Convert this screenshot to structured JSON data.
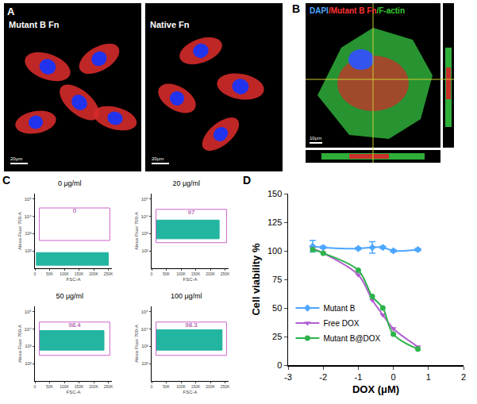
{
  "panels": {
    "A": {
      "letter": "A",
      "images": [
        {
          "label": "Mutant B Fn",
          "scale_bar": "20μm"
        },
        {
          "label": "Native Fn",
          "scale_bar": "20μm"
        }
      ]
    },
    "B": {
      "letter": "B",
      "stain_labels": [
        {
          "text": "DAPI",
          "color": "#4da6ff"
        },
        {
          "text": "/Mutant B Fn",
          "color": "#ff3333"
        },
        {
          "text": "/F-actin",
          "color": "#33cc33"
        }
      ],
      "scale_bar": "10μm"
    },
    "C": {
      "letter": "C"
    },
    "D": {
      "letter": "D"
    }
  },
  "chart_data": [
    {
      "type": "density",
      "title": "0 μg/ml",
      "xlabel": "FSC-A",
      "ylabel": "Alexa Fluor 700-A",
      "xlim": [
        0,
        262000
      ],
      "xticks": [
        0,
        {
          "value": 50000,
          "label": "50K"
        },
        {
          "value": 100000,
          "label": "100K"
        },
        {
          "value": 150000,
          "label": "150K"
        },
        {
          "value": 200000,
          "label": "200K"
        },
        {
          "value": 250000,
          "label": "250K"
        }
      ],
      "ylim": [
        10,
        200000
      ],
      "log": "y",
      "yticks": [
        {
          "value": 100,
          "label": "10²"
        },
        {
          "value": 1000,
          "label": "10³"
        },
        {
          "value": 10000,
          "label": "10⁴"
        },
        {
          "value": 100000,
          "label": "10⁵"
        }
      ],
      "grid": false,
      "color": "#22b5a0",
      "population": {
        "x": [
          5000,
          250000
        ],
        "y": [
          15,
          80
        ]
      },
      "gate": {
        "x": [
          15000,
          255000
        ],
        "y": [
          400,
          30000
        ]
      },
      "gate_percent": 0
    },
    {
      "type": "density",
      "title": "20 μg/ml",
      "xlabel": "FSC-A",
      "ylabel": "Alexa Fluor 700-A",
      "xlim": [
        0,
        262000
      ],
      "xticks": [
        0,
        {
          "value": 50000,
          "label": "50K"
        },
        {
          "value": 100000,
          "label": "100K"
        },
        {
          "value": 150000,
          "label": "150K"
        },
        {
          "value": 200000,
          "label": "200K"
        },
        {
          "value": 250000,
          "label": "250K"
        }
      ],
      "ylim": [
        10,
        200000
      ],
      "log": "y",
      "yticks": [
        {
          "value": 100,
          "label": "10²"
        },
        {
          "value": 1000,
          "label": "10³"
        },
        {
          "value": 10000,
          "label": "10⁴"
        },
        {
          "value": 100000,
          "label": "10⁵"
        }
      ],
      "grid": false,
      "color": "#22b5a0",
      "population": {
        "x": [
          15000,
          230000
        ],
        "y": [
          500,
          6000
        ]
      },
      "gate": {
        "x": [
          15000,
          255000
        ],
        "y": [
          300,
          25000
        ]
      },
      "gate_percent": 97
    },
    {
      "type": "density",
      "title": "50 μg/ml",
      "xlabel": "FSC-A",
      "ylabel": "Alexa Fluor 700-A",
      "xlim": [
        0,
        262000
      ],
      "xticks": [
        0,
        {
          "value": 50000,
          "label": "50K"
        },
        {
          "value": 100000,
          "label": "100K"
        },
        {
          "value": 150000,
          "label": "150K"
        },
        {
          "value": 200000,
          "label": "200K"
        },
        {
          "value": 250000,
          "label": "250K"
        }
      ],
      "ylim": [
        10,
        200000
      ],
      "log": "y",
      "yticks": [
        {
          "value": 100,
          "label": "10²"
        },
        {
          "value": 1000,
          "label": "10³"
        },
        {
          "value": 10000,
          "label": "10⁴"
        },
        {
          "value": 100000,
          "label": "10⁵"
        }
      ],
      "grid": false,
      "color": "#22b5a0",
      "population": {
        "x": [
          15000,
          235000
        ],
        "y": [
          600,
          8000
        ]
      },
      "gate": {
        "x": [
          15000,
          255000
        ],
        "y": [
          300,
          25000
        ]
      },
      "gate_percent": 98.4
    },
    {
      "type": "density",
      "title": "100 μg/ml",
      "xlabel": "FSC-A",
      "ylabel": "Alexa Fluor 700-A",
      "xlim": [
        0,
        262000
      ],
      "xticks": [
        0,
        {
          "value": 50000,
          "label": "50K"
        },
        {
          "value": 100000,
          "label": "100K"
        },
        {
          "value": 150000,
          "label": "150K"
        },
        {
          "value": 200000,
          "label": "200K"
        },
        {
          "value": 250000,
          "label": "250K"
        }
      ],
      "ylim": [
        10,
        200000
      ],
      "log": "y",
      "yticks": [
        {
          "value": 100,
          "label": "10²"
        },
        {
          "value": 1000,
          "label": "10³"
        },
        {
          "value": 10000,
          "label": "10⁴"
        },
        {
          "value": 100000,
          "label": "10⁵"
        }
      ],
      "grid": false,
      "color": "#22b5a0",
      "population": {
        "x": [
          15000,
          240000
        ],
        "y": [
          600,
          9000
        ]
      },
      "gate": {
        "x": [
          15000,
          255000
        ],
        "y": [
          300,
          25000
        ]
      },
      "gate_percent": 98.3
    },
    {
      "type": "line",
      "xlabel": "DOX (μM)",
      "ylabel": "Cell viability %",
      "xlim": [
        -3,
        2
      ],
      "xticks": [
        -3,
        -2,
        -1,
        0,
        1,
        2
      ],
      "ylim": [
        0,
        150
      ],
      "yticks": [
        0,
        25,
        50,
        75,
        100,
        125,
        150
      ],
      "grid": false,
      "legend": "left",
      "series": [
        {
          "name": "Mutant B",
          "color": "#4da6ff",
          "marker": "diamond",
          "line_style": "solid",
          "x": [
            -2.3,
            -2,
            -1,
            -0.6,
            -0.3,
            0,
            0.7
          ],
          "values": [
            104,
            103,
            102,
            103,
            103,
            100,
            101
          ],
          "errors": [
            5,
            1,
            1,
            5,
            1,
            1,
            1
          ]
        },
        {
          "name": "Free DOX",
          "color": "#b05fd0",
          "marker": "triangle-down",
          "line_style": "solid",
          "x": [
            -2.3,
            -2,
            -1,
            -0.6,
            -0.3,
            0,
            0.7
          ],
          "values": [
            102,
            98,
            79,
            57,
            44,
            32,
            16
          ]
        },
        {
          "name": "Mutant B@DOX",
          "color": "#2db34a",
          "marker": "circle",
          "line_style": "solid",
          "x": [
            -2.3,
            -2,
            -1,
            -0.6,
            -0.3,
            0,
            0.7
          ],
          "values": [
            101,
            98,
            83,
            60,
            50,
            27,
            14
          ]
        }
      ]
    }
  ]
}
